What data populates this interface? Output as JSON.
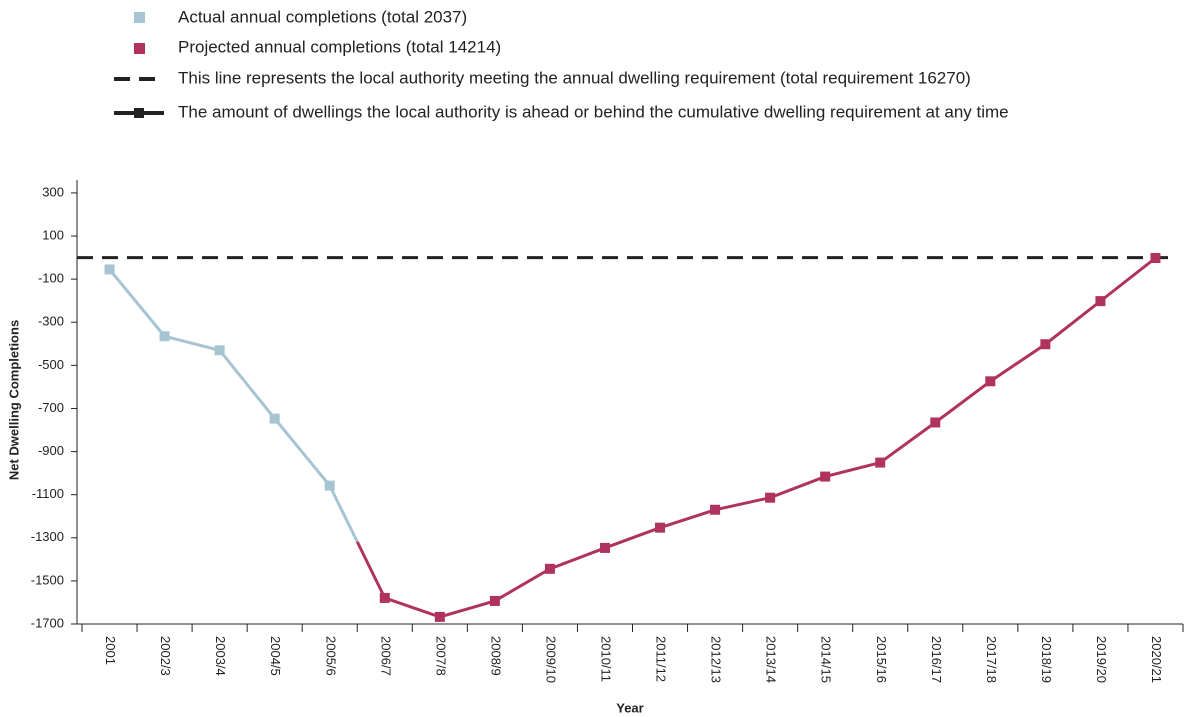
{
  "chart_data": {
    "type": "line",
    "x_label": "Year",
    "y_label": "Net Dwelling Completions",
    "categories": [
      "2001",
      "2002/3",
      "2003/4",
      "2004/5",
      "2005/6",
      "2006/7",
      "2007/8",
      "2008/9",
      "2009/10",
      "2010/11",
      "2011/12",
      "2012/13",
      "2013/14",
      "2014/15",
      "2015/16",
      "2016/17",
      "2017/18",
      "2018/19",
      "2019/20",
      "2020/21"
    ],
    "series": [
      {
        "name": "Actual annual completions (total 2037)",
        "color": "#a7c4d3",
        "values": [
          -55,
          -365,
          -430,
          -747,
          -1058,
          null,
          null,
          null,
          null,
          null,
          null,
          null,
          null,
          null,
          null,
          null,
          null,
          null,
          null,
          null
        ]
      },
      {
        "name": "Projected annual completions (total 14214)",
        "color": "#b0325e",
        "values": [
          null,
          null,
          null,
          null,
          null,
          -1579,
          -1667,
          -1593,
          -1444,
          -1347,
          -1253,
          -1170,
          -1114,
          -1016,
          -951,
          -765,
          -574,
          -402,
          -202,
          -2
        ]
      }
    ],
    "reference_line": {
      "label": "This line represents the local authority meeting the annual dwelling requirement (total requirement 16270)",
      "value": 0,
      "color": "#222222"
    },
    "cumulative_label": "The amount of dwellings the local authority is ahead or behind the cumulative dwelling requirement at any time",
    "ylim": [
      -1700,
      360
    ],
    "yticks": [
      300,
      100,
      -100,
      -300,
      -500,
      -700,
      -900,
      -1100,
      -1300,
      -1500,
      -1700
    ]
  }
}
